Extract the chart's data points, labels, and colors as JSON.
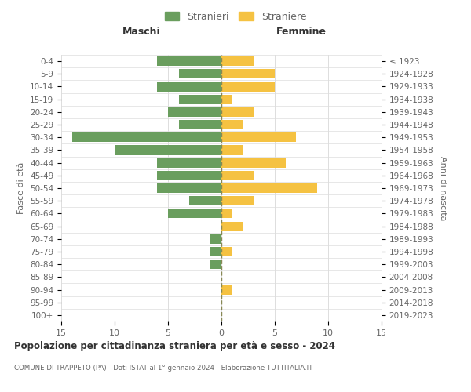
{
  "age_groups": [
    "0-4",
    "5-9",
    "10-14",
    "15-19",
    "20-24",
    "25-29",
    "30-34",
    "35-39",
    "40-44",
    "45-49",
    "50-54",
    "55-59",
    "60-64",
    "65-69",
    "70-74",
    "75-79",
    "80-84",
    "85-89",
    "90-94",
    "95-99",
    "100+"
  ],
  "birth_years": [
    "2019-2023",
    "2014-2018",
    "2009-2013",
    "2004-2008",
    "1999-2003",
    "1994-1998",
    "1989-1993",
    "1984-1988",
    "1979-1983",
    "1974-1978",
    "1969-1973",
    "1964-1968",
    "1959-1963",
    "1954-1958",
    "1949-1953",
    "1944-1948",
    "1939-1943",
    "1934-1938",
    "1929-1933",
    "1924-1928",
    "≤ 1923"
  ],
  "maschi": [
    6,
    4,
    6,
    4,
    5,
    4,
    14,
    10,
    6,
    6,
    6,
    3,
    5,
    0,
    1,
    1,
    1,
    0,
    0,
    0,
    0
  ],
  "femmine": [
    3,
    5,
    5,
    1,
    3,
    2,
    7,
    2,
    6,
    3,
    9,
    3,
    1,
    2,
    0,
    1,
    0,
    0,
    1,
    0,
    0
  ],
  "color_maschi": "#6a9e5e",
  "color_femmine": "#f5c242",
  "xlim": 15,
  "title": "Popolazione per cittadinanza straniera per età e sesso - 2024",
  "subtitle": "COMUNE DI TRAPPETO (PA) - Dati ISTAT al 1° gennaio 2024 - Elaborazione TUTTITALIA.IT",
  "ylabel_left": "Fasce di età",
  "ylabel_right": "Anni di nascita",
  "header_left": "Maschi",
  "header_right": "Femmine",
  "legend_stranieri": "Stranieri",
  "legend_straniere": "Straniere",
  "bg_color": "#ffffff",
  "grid_color": "#dddddd",
  "axis_label_color": "#666666",
  "title_color": "#333333"
}
